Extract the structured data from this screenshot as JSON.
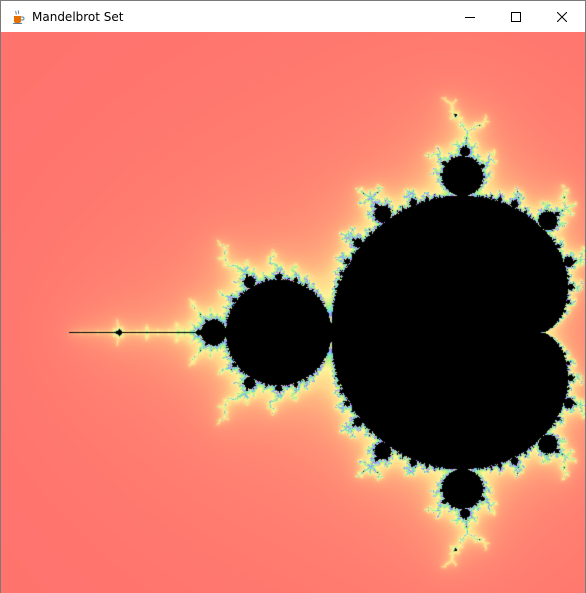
{
  "window": {
    "title": "Mandelbrot Set",
    "icon": "java-cup-icon"
  },
  "controls": {
    "minimize_icon": "minimize-icon",
    "maximize_icon": "maximize-icon",
    "close_icon": "close-icon"
  },
  "canvas": {
    "inside_color": "#000000",
    "background_color": "#ff6b6b",
    "outer_glow_color": "#ffd68a",
    "edge_colors": [
      "#fff59a",
      "#b8f07a",
      "#6ef0c8",
      "#7aa8ff",
      "#c27aff"
    ]
  }
}
